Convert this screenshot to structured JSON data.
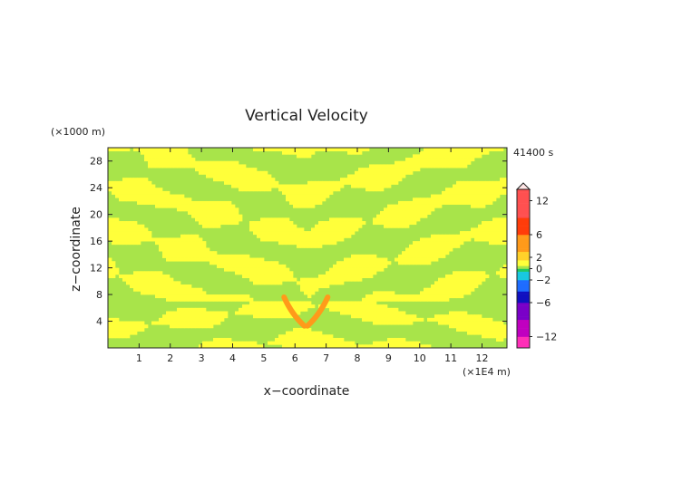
{
  "chart_data": {
    "type": "heatmap",
    "title": "Vertical Velocity",
    "xlabel": "x−coordinate",
    "ylabel": "z−coordinate",
    "x_unit": "(×1E4 m)",
    "y_unit": "(×1000 m)",
    "time_label": "41400 s",
    "xlim": [
      0,
      12.8
    ],
    "ylim": [
      0,
      30
    ],
    "x_ticks": [
      1,
      2,
      3,
      4,
      5,
      6,
      7,
      8,
      9,
      10,
      11,
      12
    ],
    "y_ticks": [
      4,
      8,
      12,
      16,
      20,
      24,
      28
    ],
    "colorbar": {
      "range": [
        -14,
        14
      ],
      "tick_values": [
        12,
        6,
        2,
        0,
        -2,
        -6,
        -12
      ],
      "tick_labels": [
        "12",
        "6",
        "2",
        "0",
        "−2",
        "−6",
        "−12"
      ],
      "stops": [
        {
          "value": -14,
          "color": "#ff2fb8"
        },
        {
          "value": -12,
          "color": "#c000c0"
        },
        {
          "value": -9,
          "color": "#7a00c8"
        },
        {
          "value": -6,
          "color": "#1010c0"
        },
        {
          "value": -4,
          "color": "#1e6cff"
        },
        {
          "value": -2,
          "color": "#19c8e0"
        },
        {
          "value": -0.5,
          "color": "#20c860"
        },
        {
          "value": 0,
          "color": "#a8e44a"
        },
        {
          "value": 0.5,
          "color": "#ffff3a"
        },
        {
          "value": 1.5,
          "color": "#ffd12a"
        },
        {
          "value": 3,
          "color": "#ff9a1a"
        },
        {
          "value": 6,
          "color": "#ff3c0a"
        },
        {
          "value": 9,
          "color": "#ff5050"
        },
        {
          "value": 14,
          "color": "#ffc0c0"
        }
      ]
    },
    "field_colors": {
      "positive": "#ffff3a",
      "neutral": "#a8e44a",
      "strong_positive": "#ff9a1a"
    }
  }
}
